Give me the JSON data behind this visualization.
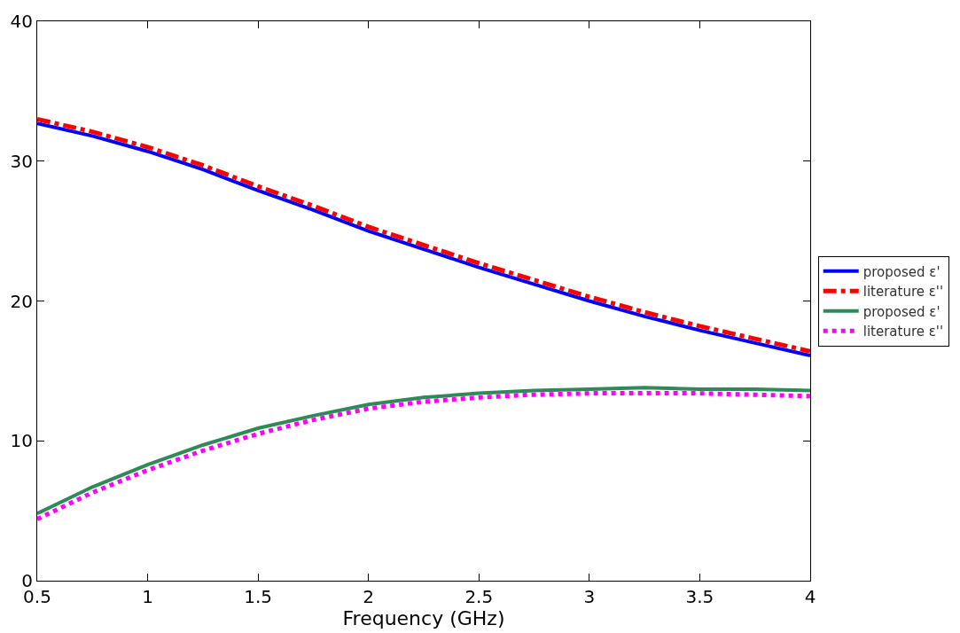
{
  "chart_data": {
    "type": "line",
    "xlabel": "Frequency (GHz)",
    "x": [
      0.5,
      0.75,
      1,
      1.25,
      1.5,
      1.75,
      2,
      2.25,
      2.5,
      2.75,
      3,
      3.25,
      3.5,
      3.75,
      4
    ],
    "xlim": [
      0.5,
      4
    ],
    "xticks": [
      0.5,
      1,
      1.5,
      2,
      2.5,
      3,
      3.5,
      4
    ],
    "ylim": [
      0,
      40
    ],
    "yticks": [
      0,
      10,
      20,
      30,
      40
    ],
    "grid": false,
    "legend": "right",
    "marker": "none",
    "series": [
      {
        "name": "proposed ε'",
        "color": "#0000ff",
        "line_style": "solid",
        "values": [
          32.7,
          31.8,
          30.7,
          29.4,
          27.9,
          26.5,
          25.0,
          23.7,
          22.4,
          21.2,
          20.0,
          18.9,
          17.9,
          17.0,
          16.1
        ]
      },
      {
        "name": "literature ε''",
        "color": "#ff0000",
        "line_style": "dashdot",
        "values": [
          33.0,
          32.1,
          31.0,
          29.7,
          28.2,
          26.8,
          25.3,
          24.0,
          22.7,
          21.5,
          20.3,
          19.2,
          18.2,
          17.3,
          16.4
        ]
      },
      {
        "name": "proposed ε'",
        "color": "#2e8b57",
        "line_style": "solid",
        "values": [
          4.8,
          6.7,
          8.3,
          9.7,
          10.9,
          11.8,
          12.6,
          13.1,
          13.4,
          13.6,
          13.7,
          13.8,
          13.7,
          13.7,
          13.6
        ]
      },
      {
        "name": "literature ε''",
        "color": "#ff00ff",
        "line_style": "dotted",
        "values": [
          4.4,
          6.3,
          7.9,
          9.3,
          10.5,
          11.5,
          12.3,
          12.8,
          13.1,
          13.3,
          13.4,
          13.4,
          13.4,
          13.3,
          13.2
        ]
      }
    ]
  }
}
